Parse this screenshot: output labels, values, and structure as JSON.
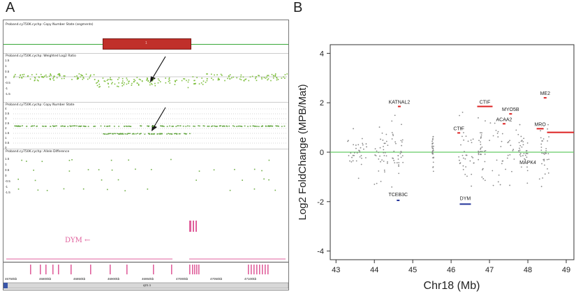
{
  "panel_a": {
    "letter": "A",
    "tracks": [
      {
        "title": "Proband.cy750K.cychp: Copy Number State (segments)"
      },
      {
        "title": "Proband.cy750K.cychp: Weighted Log2 Ratio",
        "ticks": [
          "1.5",
          "1",
          "0.5",
          "0",
          "-0.5",
          "-1",
          "-1.5"
        ]
      },
      {
        "title": "Proband.cy750K.cychp: Copy Number State",
        "ticks": [
          "4",
          "3.5",
          "3",
          "2.5",
          "2",
          "1.5",
          "1",
          "0.5",
          "0"
        ]
      },
      {
        "title": "Proband.cy750K.cychp: Allele Difference",
        "ticks": [
          "1.5",
          "1",
          "0.5",
          "0",
          "-0.5",
          "-1",
          "-1.5"
        ]
      }
    ],
    "segment_label": "1",
    "gene_label": "DYM ←",
    "coordinates": [
      "46750kb",
      "46800kb",
      "46850kb",
      "46900kb",
      "46950kb",
      "47000kb",
      "47050kb",
      "47100kb"
    ],
    "band_label": "q21.1",
    "colors": {
      "segment": "#c0302a",
      "baseline": "#38a838",
      "points": "#7fbf3f",
      "gene": "#e0609c"
    }
  },
  "panel_b_letter": "B",
  "chart_data": {
    "type": "scatter",
    "xlabel": "Chr18 (Mb)",
    "ylabel": "Log2 FoldChange (MPB/Mat)",
    "xlim": [
      42.85,
      49.2
    ],
    "ylim": [
      -4.35,
      4.35
    ],
    "xticks": [
      43,
      44,
      45,
      46,
      47,
      48,
      49
    ],
    "yticks": [
      -4,
      -2,
      0,
      2,
      4
    ],
    "baseline": 0,
    "colors": {
      "points": "#888888",
      "baseline": "#66cc66",
      "up": "#dd2222",
      "down": "#223399"
    },
    "gene_labels": [
      {
        "name": "KATNAL2",
        "x": 44.65,
        "y": 1.85,
        "dir": "up"
      },
      {
        "name": "CTIF",
        "x": 46.88,
        "y": 1.85,
        "dir": "up"
      },
      {
        "name": "CTIF",
        "x": 46.2,
        "y": 0.78,
        "dir": "up"
      },
      {
        "name": "MYO5B",
        "x": 47.55,
        "y": 1.55,
        "dir": "up"
      },
      {
        "name": "ACAA2",
        "x": 47.38,
        "y": 1.15,
        "dir": "up"
      },
      {
        "name": "ME2",
        "x": 48.45,
        "y": 2.2,
        "dir": "up"
      },
      {
        "name": "MRO",
        "x": 48.32,
        "y": 0.95,
        "dir": "up"
      },
      {
        "name": "TCEB3C",
        "x": 44.62,
        "y": -1.95,
        "dir": "down"
      },
      {
        "name": "DYM",
        "x": 46.37,
        "y": -2.1,
        "dir": "down"
      },
      {
        "name": "MAPK4",
        "x": 48.0,
        "y": -0.6,
        "dir": "none"
      }
    ]
  }
}
